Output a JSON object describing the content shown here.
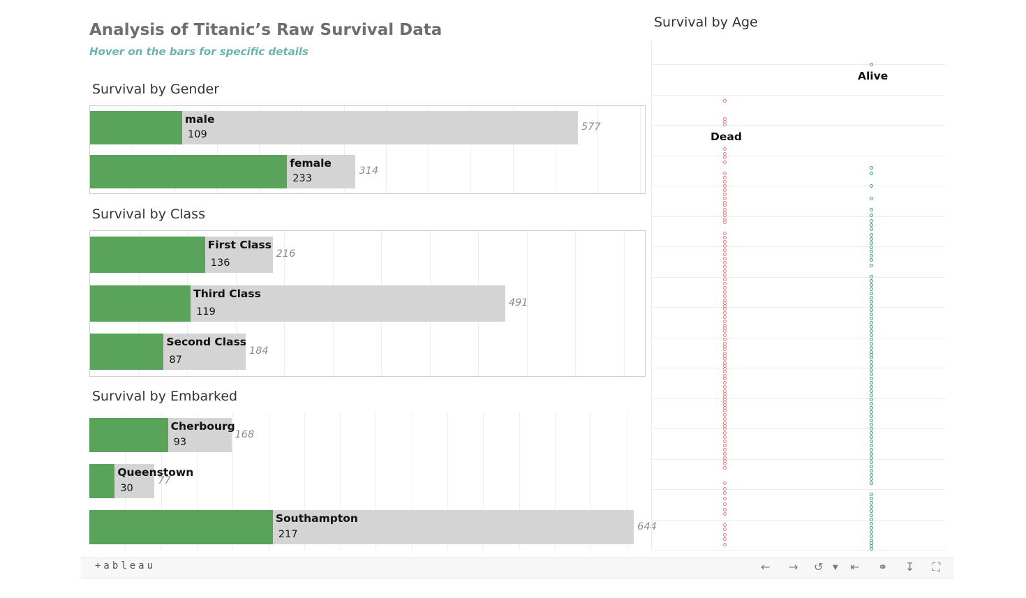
{
  "header": {
    "title": "Analysis of Titanic’s Raw Survival Data",
    "subtitle": "Hover on the  bars for specific details"
  },
  "sections": {
    "gender": "Survival by Gender",
    "class": "Survival by Class",
    "embarked": "Survival by Embarked",
    "age": "Survival by Age"
  },
  "chart_data": [
    {
      "type": "bar",
      "title": "Survival by Gender",
      "categories": [
        "male",
        "female"
      ],
      "series": [
        {
          "name": "",
          "values": [
            577,
            314
          ]
        },
        {
          "name": "",
          "values": [
            109,
            233
          ]
        }
      ],
      "totals_display": [
        "577",
        "314"
      ],
      "survived_display": [
        "109",
        "233"
      ]
    },
    {
      "type": "bar",
      "title": "Survival by Class",
      "categories": [
        "First Class",
        "Third Class",
        "Second Class"
      ],
      "series": [
        {
          "name": "",
          "values": [
            216,
            491,
            184
          ]
        },
        {
          "name": "",
          "values": [
            136,
            119,
            87
          ]
        }
      ],
      "totals_display": [
        "216",
        "491",
        "184"
      ],
      "survived_display": [
        "136",
        "119",
        "87"
      ]
    },
    {
      "type": "bar",
      "title": "Survival by Embarked",
      "categories": [
        "Cherbourg",
        "Queenstown",
        "Southampton"
      ],
      "series": [
        {
          "name": "",
          "values": [
            168,
            77,
            644
          ]
        },
        {
          "name": "",
          "values": [
            93,
            30,
            217
          ]
        }
      ],
      "totals_display": [
        "168",
        "77",
        "644"
      ],
      "survived_display": [
        "93",
        "30",
        "217"
      ]
    },
    {
      "type": "scatter",
      "title": "Survival by Age",
      "categories": [
        "Dead",
        "Alive"
      ],
      "colors": {
        "Dead": "#e8787a",
        "Alive": "#3a9e84"
      }
    }
  ],
  "colors": {
    "survived": "#59a35a",
    "total": "#d4d4d4",
    "dead": "#e8787a",
    "alive": "#3a9e84",
    "subtitle": "#6bb3b0"
  },
  "toolbar": {
    "logo": "+ableau",
    "icons": [
      "undo-icon",
      "redo-icon",
      "revert-icon",
      "revert-dropdown-icon",
      "reset-icon",
      "share-icon",
      "download-icon",
      "fullscreen-icon"
    ]
  }
}
